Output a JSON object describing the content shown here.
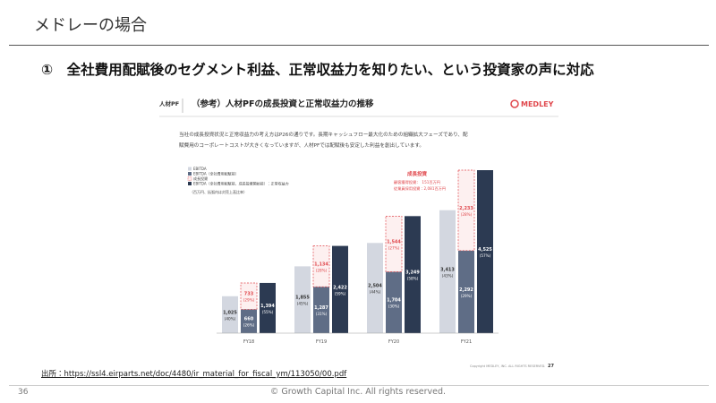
{
  "header": {
    "title": "メドレーの場合"
  },
  "subtitle": "①　全社費用配賦後のセグメント利益、正常収益力を知りたい、という投資家の声に対応",
  "slide": {
    "section": "人材PF",
    "title": "（参考）人材PFの成長投資と正常収益力の推移",
    "logo": "MEDLEY",
    "description": [
      "当社の成長投資状況と正常収益力の考え方はP26の通りです。長期キャッシュフロー最大化のための組織拡大フェーズであり、配",
      "賦費用のコーポレートコストが大きくなっていますが、人材PFでは配賦後も安定した利益を創出しています。"
    ],
    "copyright": "Copyright MEDLEY, INC. ALL RIGHTS RESERVED.",
    "page": 27
  },
  "chart_data": {
    "type": "bar",
    "categories": [
      "FY18",
      "FY19",
      "FY20",
      "FY21"
    ],
    "series": [
      {
        "name": "EBITDA",
        "color": "#d3d7e0",
        "values": [
          1025,
          1855,
          2504,
          3413
        ],
        "value_labels": [
          "1,025",
          "1,855",
          "2,504",
          "3,413"
        ],
        "share_labels": [
          "(40%)",
          "(45%)",
          "(44%)",
          "(43%)"
        ]
      },
      {
        "name": "EBITDA（全社費用配賦前）",
        "color": "#5f6d86",
        "values": [
          660,
          1287,
          1704,
          2292
        ],
        "value_labels": [
          "660",
          "1,287",
          "1,704",
          "2,292"
        ],
        "share_labels": [
          "(26%)",
          "(31%)",
          "(30%)",
          "(29%)"
        ]
      },
      {
        "name": "成長投資",
        "color": "#e0474c",
        "dashed": true,
        "stack_with_previous": true,
        "values": [
          733,
          1134,
          1544,
          2233
        ],
        "value_labels": [
          "733",
          "1,134",
          "1,544",
          "2,233"
        ],
        "share_labels": [
          "(29%)",
          "(28%)",
          "(27%)",
          "(28%)"
        ]
      },
      {
        "name": "EBITDA（全社費用配賦前、成長投資開始前）：正常収益力",
        "color": "#2c3a52",
        "values": [
          1394,
          2422,
          3249,
          4525
        ],
        "value_labels": [
          "1,394",
          "2,422",
          "3,249",
          "4,525"
        ],
        "share_labels": [
          "(55%)",
          "(59%)",
          "(58%)",
          "(57%)"
        ]
      }
    ],
    "legend_note": "（百万円、括弧内は対売上高比率）",
    "annotation": {
      "title": "成長投資",
      "lines": [
        "顧客獲得投資：　151百万円",
        "従業員採用投資：2,081百万円"
      ]
    }
  },
  "footer": {
    "source": "出所：https://ssl4.eirparts.net/doc/4480/ir_material_for_fiscal_ym/113050/00.pdf",
    "page": 36,
    "copyright": "© Growth Capital Inc. All rights reserved."
  }
}
